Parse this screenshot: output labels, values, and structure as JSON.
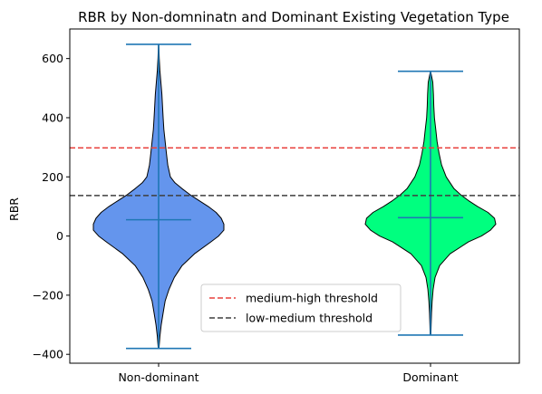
{
  "chart_data": {
    "type": "violin",
    "title": "RBR by Non-domninatn and Dominant Existing Vegetation Type",
    "xlabel": "",
    "ylabel": "RBR",
    "categories": [
      "Non-dominant",
      "Dominant"
    ],
    "ylim": [
      -430,
      700
    ],
    "yticks": [
      -400,
      -200,
      0,
      200,
      400,
      600
    ],
    "ytick_labels": [
      "−400",
      "−200",
      "0",
      "200",
      "400",
      "600"
    ],
    "violins": [
      {
        "name": "Non-dominant",
        "color": "#6495ED",
        "min": -380,
        "max": 648,
        "mean": 55,
        "profile": [
          [
            -380,
            0.005
          ],
          [
            -340,
            0.02
          ],
          [
            -300,
            0.04
          ],
          [
            -260,
            0.07
          ],
          [
            -220,
            0.1
          ],
          [
            -180,
            0.16
          ],
          [
            -140,
            0.24
          ],
          [
            -100,
            0.36
          ],
          [
            -60,
            0.55
          ],
          [
            -20,
            0.8
          ],
          [
            0,
            0.92
          ],
          [
            20,
            1.0
          ],
          [
            40,
            1.0
          ],
          [
            60,
            0.96
          ],
          [
            80,
            0.88
          ],
          [
            100,
            0.76
          ],
          [
            120,
            0.62
          ],
          [
            140,
            0.48
          ],
          [
            160,
            0.36
          ],
          [
            180,
            0.25
          ],
          [
            200,
            0.18
          ],
          [
            240,
            0.14
          ],
          [
            280,
            0.12
          ],
          [
            320,
            0.1
          ],
          [
            360,
            0.08
          ],
          [
            400,
            0.07
          ],
          [
            440,
            0.06
          ],
          [
            480,
            0.05
          ],
          [
            520,
            0.035
          ],
          [
            560,
            0.02
          ],
          [
            600,
            0.01
          ],
          [
            648,
            0.003
          ]
        ]
      },
      {
        "name": "Dominant",
        "color": "#00FF7F",
        "min": -335,
        "max": 557,
        "mean": 62,
        "profile": [
          [
            -335,
            0.005
          ],
          [
            -300,
            0.01
          ],
          [
            -260,
            0.015
          ],
          [
            -220,
            0.025
          ],
          [
            -180,
            0.04
          ],
          [
            -140,
            0.07
          ],
          [
            -100,
            0.14
          ],
          [
            -60,
            0.3
          ],
          [
            -20,
            0.58
          ],
          [
            0,
            0.78
          ],
          [
            20,
            0.92
          ],
          [
            40,
            1.0
          ],
          [
            60,
            0.98
          ],
          [
            80,
            0.88
          ],
          [
            100,
            0.72
          ],
          [
            120,
            0.58
          ],
          [
            140,
            0.46
          ],
          [
            160,
            0.36
          ],
          [
            200,
            0.24
          ],
          [
            240,
            0.17
          ],
          [
            280,
            0.13
          ],
          [
            320,
            0.1
          ],
          [
            360,
            0.08
          ],
          [
            400,
            0.06
          ],
          [
            440,
            0.05
          ],
          [
            480,
            0.045
          ],
          [
            520,
            0.035
          ],
          [
            557,
            0.002
          ]
        ]
      }
    ],
    "hlines": [
      {
        "label": "medium-high threshold",
        "y": 298,
        "color": "#E8413D"
      },
      {
        "label": "low-medium threshold",
        "y": 137,
        "color": "#3F3F3F"
      }
    ],
    "legend_position": "lower center",
    "stats_color": "#1F77B4"
  }
}
